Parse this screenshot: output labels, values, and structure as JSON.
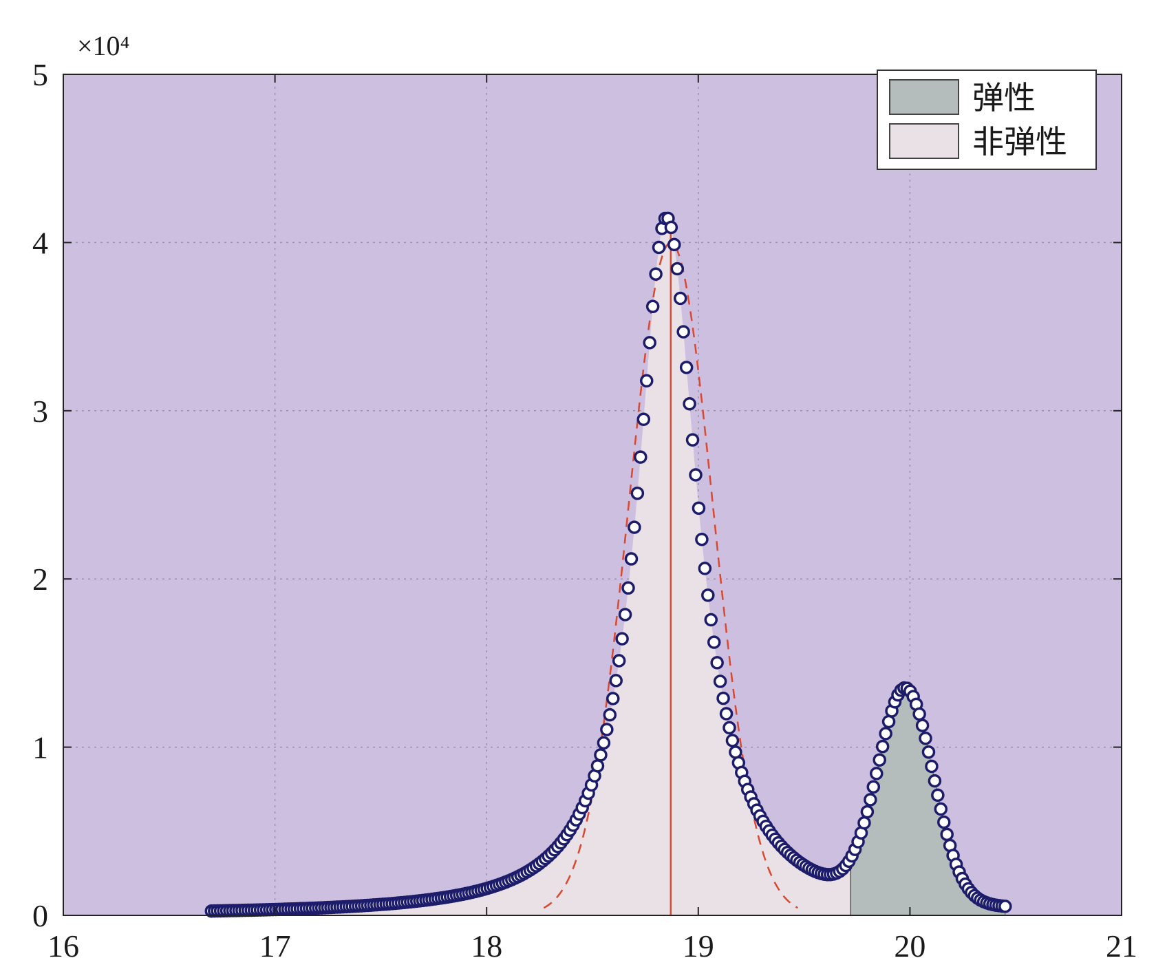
{
  "chart_data": {
    "type": "area",
    "title": "",
    "xlabel": "",
    "ylabel": "",
    "xlim": [
      16,
      21
    ],
    "ylim": [
      0,
      5
    ],
    "y_multiplier_label": "×10⁴",
    "x_ticks": [
      "16",
      "17",
      "18",
      "19",
      "20",
      "21"
    ],
    "y_ticks": [
      "0",
      "1",
      "2",
      "3",
      "4",
      "5"
    ],
    "grid": true,
    "legend_position": "top-right",
    "colors": {
      "plot_background": "#cdbfe0",
      "elastic_fill": "#b5bcbc",
      "inelastic_fill": "#e9e1e6",
      "markers": "#1c1c6a",
      "red_lines": "#d9482f"
    },
    "legend": [
      {
        "label": "弹性",
        "color": "#b5bcbc"
      },
      {
        "label": "非弹性",
        "color": "#e9e1e6"
      }
    ],
    "peaks": {
      "inelastic": {
        "center": 18.85,
        "amplitude": 4.15,
        "hwhm_left": 0.17,
        "hwhm_right": 0.18
      },
      "elastic": {
        "center": 19.98,
        "amplitude": 1.25,
        "sigma": 0.13
      },
      "background_tail_amplitude": 0.5
    },
    "fill_boundary_x": 19.72,
    "vertical_line_x": 18.87,
    "dashed_band": {
      "center": 18.87,
      "sigma": 0.2
    },
    "scatter_x_range": [
      16.7,
      20.45
    ],
    "scatter_count": 260
  }
}
